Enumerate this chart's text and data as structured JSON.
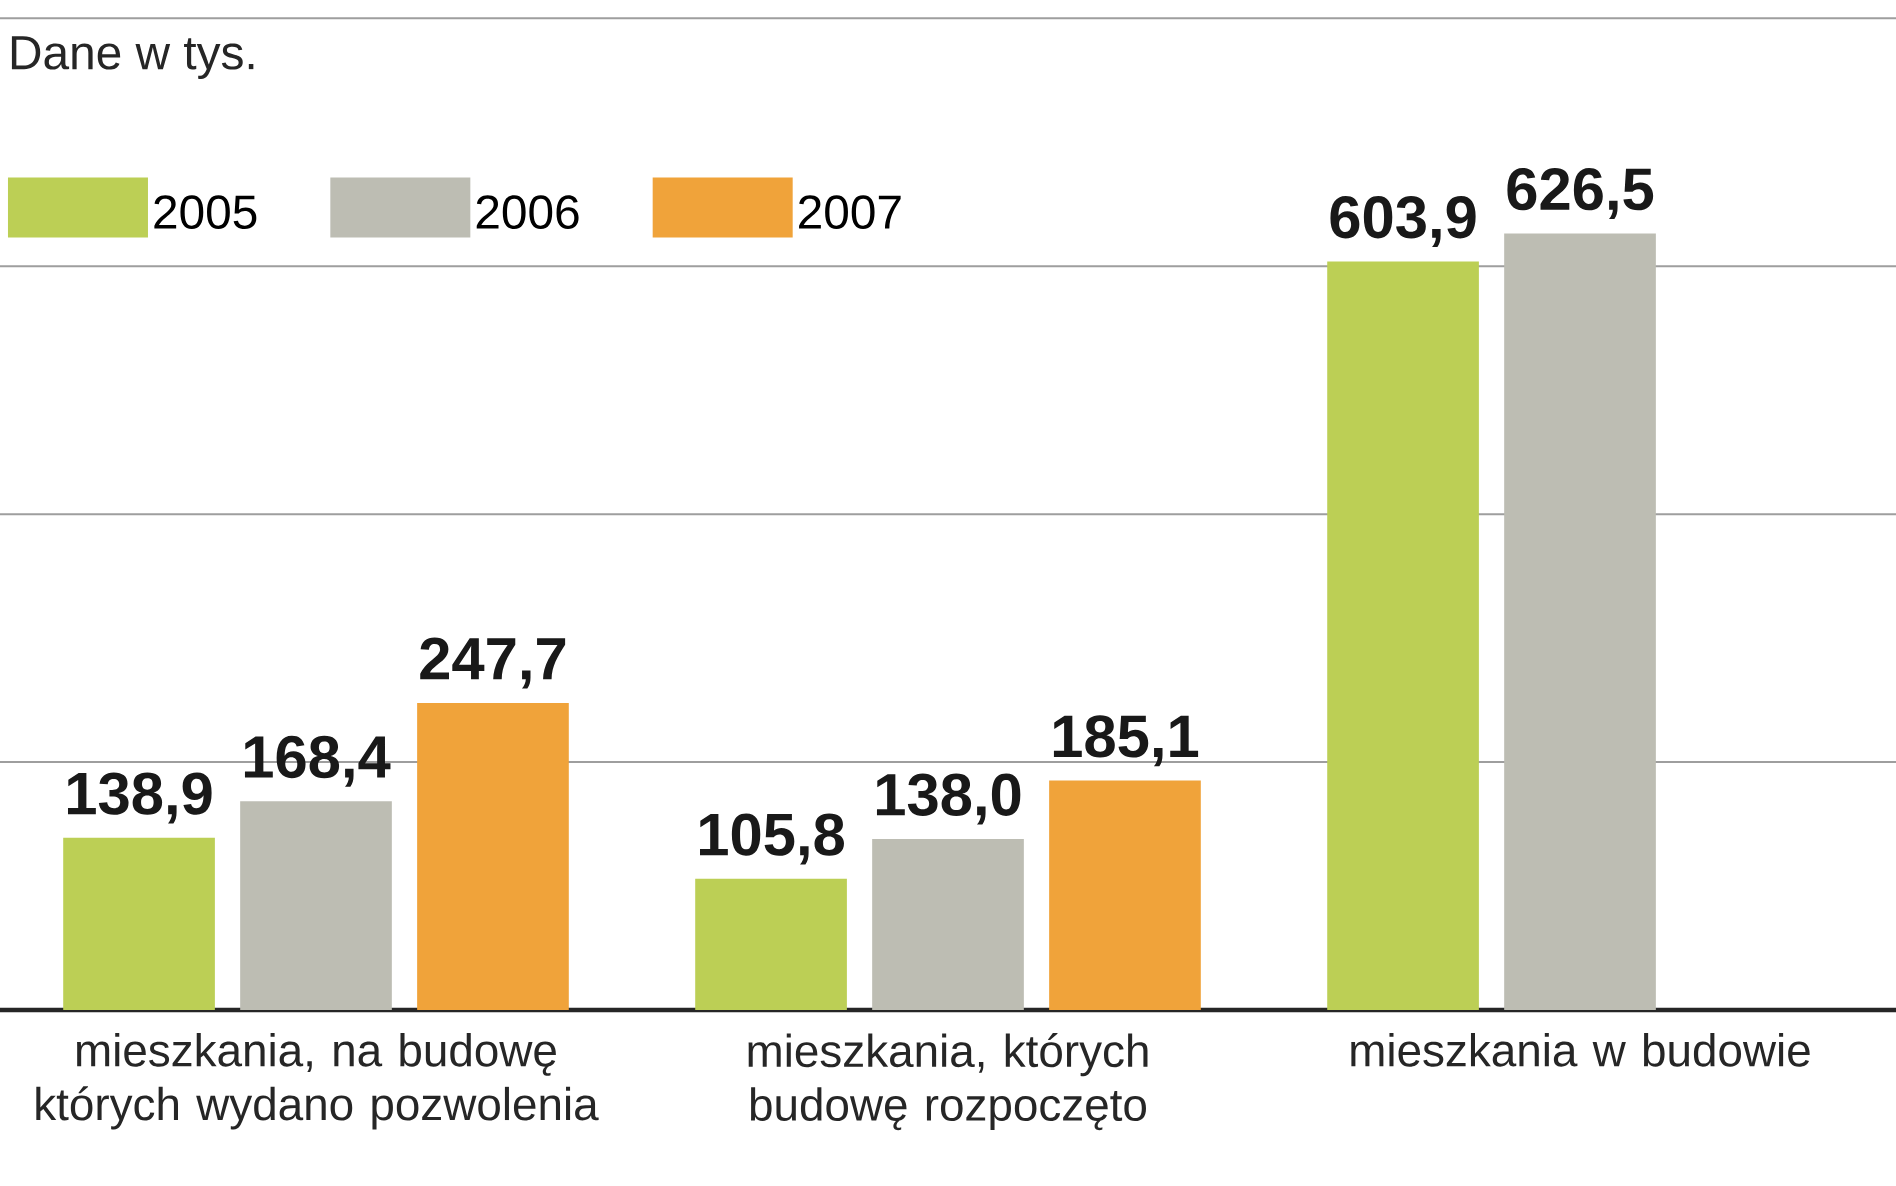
{
  "chart_data": {
    "type": "bar",
    "title": "Dane w tys.",
    "categories": [
      "mieszkania, na budowę których wydano pozwolenia",
      "mieszkania, których budowę rozpoczęto",
      "mieszkania w budowie"
    ],
    "series": [
      {
        "name": "2005",
        "color": "#bccf55",
        "values": [
          138.9,
          105.8,
          603.9
        ],
        "value_labels": [
          "138,9",
          "105,8",
          "603,9"
        ]
      },
      {
        "name": "2006",
        "color": "#bdbdb3",
        "values": [
          168.4,
          138.0,
          626.5
        ],
        "value_labels": [
          "168,4",
          "138,0",
          "626,5"
        ]
      },
      {
        "name": "2007",
        "color": "#f0a33a",
        "values": [
          247.7,
          185.1,
          null
        ],
        "value_labels": [
          "247,7",
          "185,1",
          null
        ]
      }
    ],
    "grid": "y",
    "legend": "top left",
    "tick_labels": "x"
  }
}
